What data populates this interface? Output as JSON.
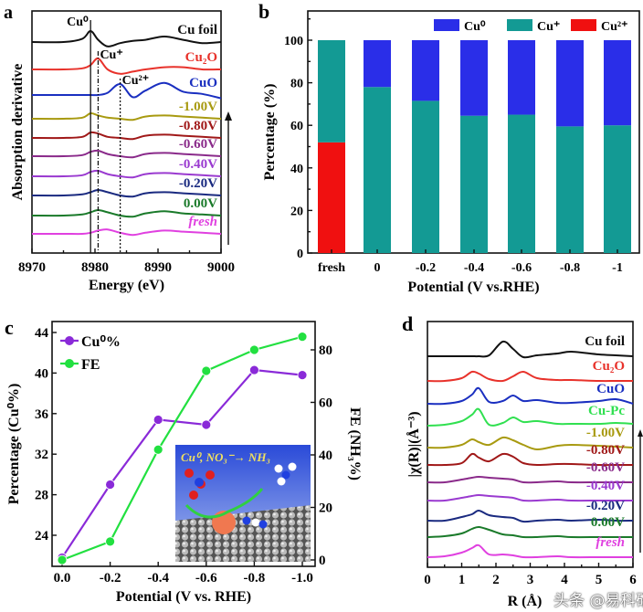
{
  "watermark": "头条 @易科研",
  "chart_data": [
    {
      "panel": "a",
      "type": "line",
      "xlabel": "Energy (eV)",
      "ylabel": "Absorption derivative",
      "xlim": [
        8970,
        9000
      ],
      "xticks": [
        "8970",
        "8980",
        "8990",
        "9000"
      ],
      "stacked": true,
      "reference_lines": [
        {
          "label": "Cu⁰",
          "x": 8979.3,
          "style": "solid"
        },
        {
          "label": "Cu⁺",
          "x": 8980.5,
          "style": "dash-dot"
        },
        {
          "label": "Cu²⁺",
          "x": 8984,
          "style": "dotted"
        }
      ],
      "arrow": "up",
      "x": [
        8970,
        8975,
        8978,
        8979.3,
        8980.5,
        8982,
        8984,
        8986,
        8988,
        8991,
        8994,
        8997,
        9000
      ],
      "series": [
        {
          "name": "Cu foil",
          "color": "#111111",
          "values": [
            0,
            0,
            0.3,
            1,
            0.2,
            -0.4,
            -0.1,
            0.1,
            0.2,
            0.5,
            0.2,
            -0.1,
            0
          ]
        },
        {
          "name": "Cu₂O",
          "color": "#e8322b",
          "values": [
            0,
            0,
            0.1,
            0.4,
            1,
            0,
            -0.4,
            -0.2,
            0,
            0.2,
            0.2,
            0,
            0
          ]
        },
        {
          "name": "CuO",
          "color": "#1a2fc0",
          "values": [
            0,
            0,
            0,
            0,
            0,
            0.2,
            1,
            -0.2,
            0.4,
            1.1,
            0.3,
            0.1,
            -0.3
          ]
        },
        {
          "name": "-1.00V",
          "color": "#a89a10",
          "values": [
            0,
            0,
            0.1,
            0.5,
            0.3,
            0.1,
            0,
            -0.1,
            0.2,
            0.3,
            0.2,
            0.1,
            0
          ]
        },
        {
          "name": "-0.80V",
          "color": "#a01818",
          "values": [
            0,
            0,
            0.1,
            0.5,
            0.4,
            0.1,
            0,
            -0.1,
            0.2,
            0.3,
            0.2,
            0.1,
            0
          ]
        },
        {
          "name": "-0.60V",
          "color": "#8a2a8a",
          "values": [
            0,
            0,
            0.1,
            0.4,
            0.5,
            0.2,
            0,
            -0.1,
            0.2,
            0.3,
            0.2,
            0.1,
            0
          ]
        },
        {
          "name": "-0.40V",
          "color": "#9a3ad0",
          "values": [
            0,
            0,
            0.1,
            0.4,
            0.5,
            0.2,
            0,
            -0.1,
            0.2,
            0.3,
            0.2,
            0.1,
            0
          ]
        },
        {
          "name": "-0.20V",
          "color": "#1a2a80",
          "values": [
            0,
            0,
            0.1,
            0.3,
            0.5,
            0.3,
            0,
            -0.1,
            0.2,
            0.3,
            0.2,
            0.1,
            0
          ]
        },
        {
          "name": "0.00V",
          "color": "#1a7a2a",
          "values": [
            0,
            0,
            0.1,
            0.3,
            0.5,
            0.3,
            0,
            -0.1,
            0.2,
            0.4,
            0.2,
            0.1,
            0
          ]
        },
        {
          "name": "fresh",
          "color": "#e040e0",
          "values": [
            0,
            0,
            0,
            0.1,
            0.3,
            0.4,
            0.1,
            -0.1,
            0.1,
            0.3,
            0.2,
            0.1,
            0
          ]
        }
      ]
    },
    {
      "panel": "b",
      "type": "bar",
      "stacked": true,
      "xlabel": "Potential (V vs.RHE)",
      "ylabel": "Percentage (%)",
      "ylim": [
        0,
        100
      ],
      "yticks": [
        "0",
        "20",
        "40",
        "60",
        "80",
        "100"
      ],
      "categories": [
        "fresh",
        "0",
        "-0.2",
        "-0.4",
        "-0.6",
        "-0.8",
        "-1"
      ],
      "legend_position": "top-right",
      "series": [
        {
          "name": "Cu²⁺",
          "color": "#f01010",
          "values": [
            52,
            0,
            0,
            0,
            0,
            0,
            0
          ]
        },
        {
          "name": "Cu⁺",
          "color": "#139a94",
          "values": [
            48,
            78,
            71.5,
            64.5,
            65,
            59.5,
            60
          ]
        },
        {
          "name": "Cu⁰",
          "color": "#2a2ee8",
          "values": [
            0,
            22,
            28.5,
            35.5,
            35,
            40.5,
            40
          ]
        }
      ]
    },
    {
      "panel": "c",
      "type": "line",
      "xlabel": "Potential (V vs. RHE)",
      "ylabel": "Percentage (Cu⁰%)",
      "y2label": "FE (NH₃%)",
      "x": [
        0.0,
        -0.2,
        -0.4,
        -0.6,
        -0.8,
        -1.0
      ],
      "xticks": [
        "0.0",
        "-0.2",
        "-0.4",
        "-0.6",
        "-0.8",
        "-1.0"
      ],
      "ylim": [
        21,
        44.5
      ],
      "yticks": [
        "24",
        "28",
        "32",
        "36",
        "40",
        "44"
      ],
      "y2lim": [
        -3,
        88
      ],
      "y2ticks": [
        "0",
        "20",
        "40",
        "60",
        "80"
      ],
      "legend_position": "top-left",
      "inset_text": "Cu⁰, NO₃⁻→ NH₃",
      "series": [
        {
          "name": "Cu⁰%",
          "axis": "left",
          "color": "#8a2ad8",
          "values": [
            21.8,
            29.0,
            35.4,
            34.9,
            40.3,
            39.8
          ]
        },
        {
          "name": "FE",
          "axis": "right",
          "color": "#22e040",
          "values": [
            0,
            7,
            42,
            72,
            80,
            85
          ]
        }
      ]
    },
    {
      "panel": "d",
      "type": "line",
      "xlabel": "R (Å)",
      "ylabel": "|χ(R)|(Å⁻³)",
      "xlim": [
        0,
        6
      ],
      "xticks": [
        "0",
        "1",
        "2",
        "3",
        "4",
        "5",
        "6"
      ],
      "stacked": true,
      "arrow": "up",
      "x": [
        0,
        0.5,
        1,
        1.3,
        1.5,
        1.8,
        2.2,
        2.5,
        2.8,
        3.2,
        3.8,
        4.2,
        5,
        5.5,
        6
      ],
      "series": [
        {
          "name": "Cu foil",
          "color": "#111111",
          "values": [
            0,
            0,
            0,
            0,
            0,
            0.1,
            1.6,
            0.8,
            -0.1,
            0.1,
            0.3,
            0.5,
            0.2,
            0.1,
            0
          ]
        },
        {
          "name": "Cu₂O",
          "color": "#e8322b",
          "values": [
            0,
            0,
            0.3,
            1.0,
            0.8,
            0.2,
            0,
            0.5,
            1.0,
            0.3,
            0.1,
            0.1,
            0,
            0,
            0
          ]
        },
        {
          "name": "CuO",
          "color": "#1a2fc0",
          "values": [
            0,
            0,
            0.3,
            1.0,
            1.7,
            0.2,
            0.3,
            0.9,
            0.3,
            0.4,
            0.1,
            0.1,
            0.3,
            0.5,
            0
          ]
        },
        {
          "name": "Cu-Pc",
          "color": "#30e050",
          "values": [
            0,
            0.1,
            0.5,
            1.2,
            1.8,
            0.1,
            0.3,
            0.9,
            0.4,
            0.5,
            0.2,
            0.2,
            0.2,
            0.3,
            0.2
          ]
        },
        {
          "name": "-1.00V",
          "color": "#a89a10",
          "values": [
            0,
            0,
            0.3,
            0.9,
            0.6,
            0.3,
            1.1,
            0.8,
            0.3,
            -0.2,
            0.2,
            0.3,
            0.2,
            0.1,
            0
          ]
        },
        {
          "name": "-0.80V",
          "color": "#a01818",
          "values": [
            0,
            0,
            0.2,
            1.2,
            0.8,
            0.4,
            1.2,
            0.9,
            0.2,
            0,
            0.1,
            0.1,
            0,
            0,
            0
          ]
        },
        {
          "name": "-0.60V",
          "color": "#8a2a8a",
          "values": [
            0,
            0,
            0.3,
            0.5,
            0.6,
            0.5,
            0.4,
            0.3,
            0,
            0,
            0.1,
            0,
            0,
            0,
            0
          ]
        },
        {
          "name": "-0.40V",
          "color": "#9a3ad0",
          "values": [
            0,
            0,
            0.3,
            0.5,
            0.6,
            0.5,
            0.4,
            0.3,
            0,
            0,
            0.1,
            0,
            0,
            0,
            0
          ]
        },
        {
          "name": "-0.20V",
          "color": "#1a2a80",
          "values": [
            0,
            0,
            0.4,
            0.7,
            1.1,
            0.6,
            0.4,
            0.3,
            -0.1,
            0,
            0.1,
            0,
            0.1,
            0,
            0
          ]
        },
        {
          "name": "0.00V",
          "color": "#1a7a2a",
          "values": [
            0,
            0.1,
            0.4,
            0.9,
            1.1,
            0.8,
            0.3,
            0.2,
            0,
            0,
            0.1,
            0,
            0,
            0,
            0
          ]
        },
        {
          "name": "fresh",
          "color": "#e040e0",
          "values": [
            0,
            0.1,
            0.5,
            1.0,
            1.3,
            0.3,
            0.3,
            0.2,
            0,
            0,
            0.1,
            0,
            0,
            0,
            0
          ]
        }
      ]
    }
  ]
}
